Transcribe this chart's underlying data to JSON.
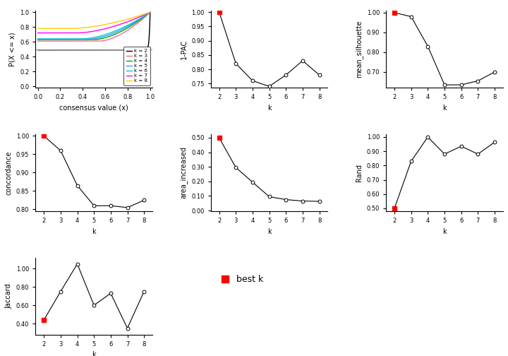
{
  "k_values": [
    2,
    3,
    4,
    5,
    6,
    7,
    8
  ],
  "pac_1minus": [
    1.0,
    0.82,
    0.76,
    0.74,
    0.78,
    0.83,
    0.78
  ],
  "mean_silhouette": [
    1.0,
    0.98,
    0.83,
    0.635,
    0.635,
    0.655,
    0.7
  ],
  "concordance": [
    1.0,
    0.96,
    0.865,
    0.81,
    0.81,
    0.805,
    0.825
  ],
  "area_increased": [
    0.5,
    0.295,
    0.195,
    0.095,
    0.075,
    0.065,
    0.063
  ],
  "rand": [
    0.5,
    0.83,
    1.0,
    0.88,
    0.935,
    0.88,
    0.963
  ],
  "jaccard": [
    0.44,
    0.75,
    1.05,
    0.6,
    0.73,
    0.35,
    0.75
  ],
  "best_k": 2,
  "colors": {
    "k2": "#000000",
    "k3": "#FF6699",
    "k4": "#00AA00",
    "k5": "#3399FF",
    "k6": "#00CCCC",
    "k7": "#FF00FF",
    "k8": "#FFCC00"
  },
  "best_k_color": "#FF0000",
  "line_color": "#000000",
  "bg_color": "#FFFFFF"
}
